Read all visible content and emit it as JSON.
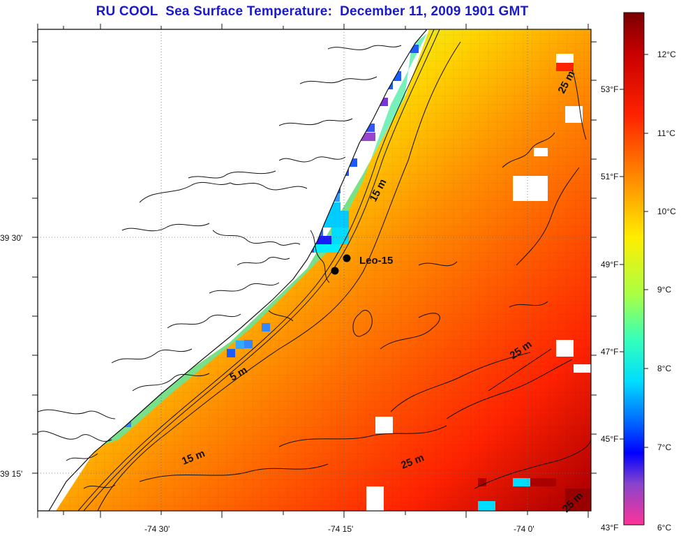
{
  "title": "RU COOL  Sea Surface Temperature:  December 11, 2009 1901 GMT",
  "axes": {
    "lon_labels": [
      "-74 30'",
      "-74 15'",
      "-74 0'"
    ],
    "lat_labels": [
      "39 30'",
      "39 15'"
    ]
  },
  "station": {
    "label": "Leo-15"
  },
  "contours": [
    "5 m",
    "15 m",
    "15 m",
    "25 m",
    "25 m",
    "25 m",
    "25 m"
  ],
  "colorbar": {
    "celsius": [
      "12°C",
      "11°C",
      "10°C",
      "9°C",
      "8°C",
      "7°C",
      "6°C"
    ],
    "fahrenheit": [
      "53°F",
      "51°F",
      "49°F",
      "47°F",
      "45°F",
      "43°F"
    ]
  },
  "colors": {
    "title": "#1a1acc",
    "land": "#ffffff",
    "coast": "#111111"
  }
}
